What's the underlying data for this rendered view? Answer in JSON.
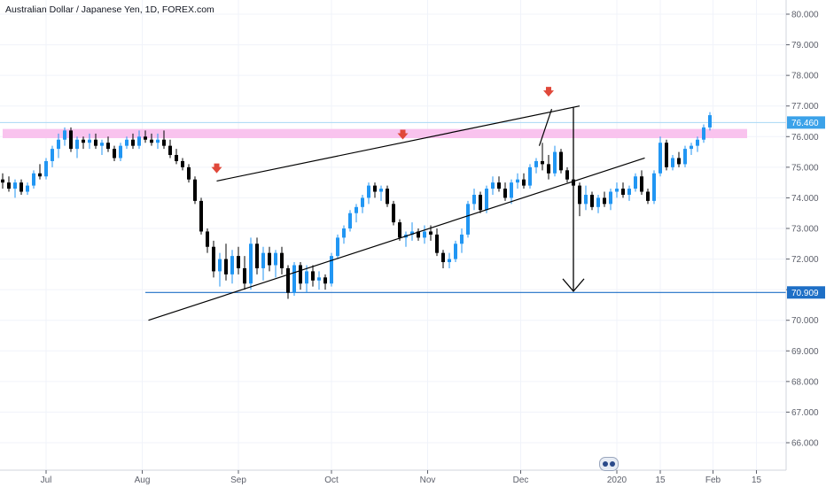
{
  "header": {
    "title": "Australian Dollar / Japanese Yen, 1D, FOREX.com"
  },
  "colors": {
    "up": "#2196f3",
    "down": "#000000",
    "resistance_zone": "#f9c3ee",
    "support_line": "#1e6fc6",
    "arrow_marker": "#e0483a",
    "last_price_badge": "#3ba2e9",
    "grid": "#f0f3fa"
  },
  "chart_data": {
    "type": "candlestick",
    "symbol": "AUDJPY",
    "interval": "1D",
    "ylim": [
      65.4,
      80.4
    ],
    "y_ticks": [
      "80.000",
      "79.000",
      "78.000",
      "77.000",
      "76.000",
      "75.000",
      "74.000",
      "73.000",
      "72.000",
      "71.000",
      "70.000",
      "69.000",
      "68.000",
      "67.000",
      "66.000"
    ],
    "x_ticks": [
      "Jul",
      "Aug",
      "Sep",
      "Oct",
      "Nov",
      "Dec",
      "2020",
      "15",
      "Feb",
      "15"
    ],
    "x_tick_days": [
      0,
      31,
      62,
      92,
      123,
      153,
      184,
      198,
      215,
      229
    ],
    "candle_start_day": -14,
    "candles": [
      [
        74.6,
        74.8,
        74.3,
        74.5
      ],
      [
        74.5,
        74.7,
        74.2,
        74.3
      ],
      [
        74.3,
        74.6,
        74.0,
        74.5
      ],
      [
        74.5,
        74.6,
        74.1,
        74.2
      ],
      [
        74.2,
        74.5,
        74.1,
        74.4
      ],
      [
        74.4,
        74.9,
        74.3,
        74.8
      ],
      [
        74.8,
        75.1,
        74.6,
        74.7
      ],
      [
        74.7,
        75.3,
        74.6,
        75.2
      ],
      [
        75.2,
        75.7,
        75.0,
        75.6
      ],
      [
        75.6,
        76.1,
        75.3,
        75.9
      ],
      [
        75.9,
        76.3,
        75.7,
        76.2
      ],
      [
        76.2,
        76.3,
        75.5,
        75.6
      ],
      [
        75.6,
        76.0,
        75.3,
        75.9
      ],
      [
        75.9,
        76.0,
        75.6,
        75.8
      ],
      [
        75.8,
        76.1,
        75.6,
        75.9
      ],
      [
        75.9,
        76.1,
        75.6,
        75.7
      ],
      [
        75.7,
        75.9,
        75.4,
        75.8
      ],
      [
        75.8,
        76.0,
        75.5,
        75.6
      ],
      [
        75.6,
        75.7,
        75.2,
        75.3
      ],
      [
        75.3,
        75.8,
        75.2,
        75.7
      ],
      [
        75.7,
        76.0,
        75.6,
        75.9
      ],
      [
        75.9,
        76.1,
        75.6,
        75.7
      ],
      [
        75.7,
        76.2,
        75.6,
        76.0
      ],
      [
        76.0,
        76.2,
        75.8,
        75.9
      ],
      [
        75.9,
        76.1,
        75.7,
        75.8
      ],
      [
        75.8,
        76.1,
        75.6,
        75.9
      ],
      [
        75.9,
        76.2,
        75.6,
        75.7
      ],
      [
        75.7,
        75.9,
        75.3,
        75.4
      ],
      [
        75.4,
        75.6,
        75.1,
        75.2
      ],
      [
        75.2,
        75.3,
        74.9,
        75.0
      ],
      [
        75.0,
        75.1,
        74.5,
        74.6
      ],
      [
        74.6,
        74.7,
        73.8,
        73.9
      ],
      [
        73.9,
        74.0,
        72.8,
        72.9
      ],
      [
        72.9,
        73.0,
        72.2,
        72.4
      ],
      [
        72.4,
        72.6,
        71.4,
        71.6
      ],
      [
        71.6,
        72.2,
        71.1,
        72.0
      ],
      [
        72.0,
        72.5,
        71.3,
        71.5
      ],
      [
        71.5,
        72.3,
        71.2,
        72.1
      ],
      [
        72.1,
        72.4,
        71.5,
        71.7
      ],
      [
        71.7,
        72.1,
        71.0,
        71.2
      ],
      [
        71.2,
        72.7,
        71.0,
        72.5
      ],
      [
        72.5,
        72.7,
        71.5,
        71.7
      ],
      [
        71.7,
        72.4,
        71.3,
        72.2
      ],
      [
        72.2,
        72.4,
        71.6,
        71.8
      ],
      [
        71.8,
        72.3,
        71.4,
        72.2
      ],
      [
        72.2,
        72.4,
        71.5,
        71.7
      ],
      [
        71.7,
        71.8,
        70.7,
        70.9
      ],
      [
        70.9,
        71.9,
        70.8,
        71.8
      ],
      [
        71.8,
        71.9,
        71.0,
        71.2
      ],
      [
        71.2,
        71.8,
        70.9,
        71.6
      ],
      [
        71.6,
        71.8,
        71.1,
        71.3
      ],
      [
        71.3,
        71.6,
        71.0,
        71.4
      ],
      [
        71.4,
        71.5,
        71.0,
        71.2
      ],
      [
        71.2,
        72.2,
        71.1,
        72.1
      ],
      [
        72.1,
        72.8,
        72.0,
        72.7
      ],
      [
        72.7,
        73.1,
        72.5,
        73.0
      ],
      [
        73.0,
        73.6,
        72.9,
        73.5
      ],
      [
        73.5,
        73.8,
        73.2,
        73.7
      ],
      [
        73.7,
        74.1,
        73.5,
        74.0
      ],
      [
        74.0,
        74.5,
        73.8,
        74.4
      ],
      [
        74.4,
        74.5,
        74.0,
        74.2
      ],
      [
        74.2,
        74.4,
        73.9,
        74.3
      ],
      [
        74.3,
        74.4,
        73.7,
        73.8
      ],
      [
        73.8,
        73.9,
        73.1,
        73.2
      ],
      [
        73.2,
        73.3,
        72.6,
        72.7
      ],
      [
        72.7,
        72.9,
        72.4,
        72.8
      ],
      [
        72.8,
        73.2,
        72.6,
        72.9
      ],
      [
        72.9,
        73.0,
        72.6,
        72.7
      ],
      [
        72.7,
        73.1,
        72.5,
        72.9
      ],
      [
        72.9,
        73.1,
        72.6,
        72.8
      ],
      [
        72.8,
        73.0,
        72.1,
        72.2
      ],
      [
        72.2,
        72.3,
        71.7,
        71.9
      ],
      [
        71.9,
        72.2,
        71.7,
        72.0
      ],
      [
        72.0,
        72.6,
        71.9,
        72.5
      ],
      [
        72.5,
        73.0,
        72.2,
        72.8
      ],
      [
        72.8,
        73.9,
        72.7,
        73.8
      ],
      [
        73.8,
        74.3,
        73.6,
        74.1
      ],
      [
        74.1,
        74.2,
        73.5,
        73.6
      ],
      [
        73.6,
        74.4,
        73.5,
        74.3
      ],
      [
        74.3,
        74.7,
        74.1,
        74.5
      ],
      [
        74.5,
        74.7,
        74.2,
        74.3
      ],
      [
        74.3,
        74.5,
        73.9,
        74.0
      ],
      [
        74.0,
        74.6,
        73.8,
        74.5
      ],
      [
        74.5,
        74.8,
        74.3,
        74.6
      ],
      [
        74.6,
        74.8,
        74.3,
        74.4
      ],
      [
        74.4,
        75.1,
        74.3,
        75.0
      ],
      [
        75.0,
        75.3,
        74.8,
        75.2
      ],
      [
        75.2,
        75.8,
        74.9,
        75.1
      ],
      [
        75.1,
        75.4,
        74.6,
        74.8
      ],
      [
        74.8,
        75.7,
        74.7,
        75.5
      ],
      [
        75.5,
        75.6,
        74.8,
        74.9
      ],
      [
        74.9,
        75.0,
        74.5,
        74.6
      ],
      [
        74.6,
        74.7,
        74.3,
        74.4
      ],
      [
        74.4,
        74.5,
        73.4,
        73.8
      ],
      [
        73.8,
        74.4,
        73.6,
        74.1
      ],
      [
        74.1,
        74.2,
        73.6,
        73.7
      ],
      [
        73.7,
        74.1,
        73.5,
        74.0
      ],
      [
        74.0,
        74.2,
        73.7,
        73.8
      ],
      [
        73.8,
        74.3,
        73.6,
        74.2
      ],
      [
        74.2,
        74.5,
        74.0,
        74.3
      ],
      [
        74.3,
        74.5,
        74.0,
        74.1
      ],
      [
        74.1,
        74.4,
        73.9,
        74.3
      ],
      [
        74.3,
        74.8,
        74.2,
        74.7
      ],
      [
        74.7,
        74.9,
        74.1,
        74.2
      ],
      [
        74.2,
        74.3,
        73.8,
        73.9
      ],
      [
        73.9,
        74.9,
        73.8,
        74.8
      ],
      [
        74.8,
        76.0,
        74.7,
        75.8
      ],
      [
        75.8,
        75.9,
        74.9,
        75.0
      ],
      [
        75.0,
        75.4,
        74.9,
        75.3
      ],
      [
        75.3,
        75.5,
        75.0,
        75.1
      ],
      [
        75.1,
        75.7,
        75.0,
        75.6
      ],
      [
        75.6,
        75.8,
        75.4,
        75.7
      ],
      [
        75.7,
        76.0,
        75.5,
        75.9
      ],
      [
        75.9,
        76.4,
        75.8,
        76.3
      ],
      [
        76.3,
        76.8,
        76.2,
        76.7
      ]
    ],
    "horizontal_levels": [
      {
        "price": 70.909,
        "label": "70.909",
        "start_day": 32
      },
      {
        "price": 76.46,
        "label": "76.460"
      }
    ],
    "resistance_zone": {
      "from_price": 75.95,
      "to_price": 76.25,
      "start_day": -14,
      "end_day": 226
    },
    "trendlines": [
      {
        "from": [
          55,
          74.55
        ],
        "to": [
          172,
          77.0
        ]
      },
      {
        "from": [
          33,
          70.0
        ],
        "to": [
          193,
          75.3
        ]
      },
      {
        "from": [
          159,
          75.7
        ],
        "to": [
          163,
          76.9
        ]
      }
    ],
    "down_arrow": {
      "day": 170,
      "from_price": 76.95,
      "to_price": 70.95
    },
    "markers": [
      {
        "day": 55,
        "price": 74.95
      },
      {
        "day": 115,
        "price": 76.05
      },
      {
        "day": 162,
        "price": 77.45
      }
    ]
  }
}
